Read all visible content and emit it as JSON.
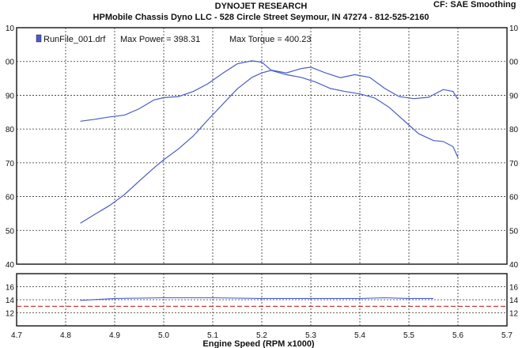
{
  "header": {
    "title": "DYNOJET RESEARCH",
    "subtitle": "HPMobile Chassis Dyno LLC - 528 Circle Street Seymour, IN 47274 - 812-525-2160",
    "settings": "CF: SAE  Smoothing"
  },
  "legend": {
    "run_file": "RunFile_001.drf",
    "max_power_label": "Max Power = 398.31",
    "max_torque_label": "Max Torque = 400.23",
    "color": "#4a5cc8"
  },
  "chart_data": [
    {
      "type": "line",
      "xlabel": "Engine Speed (RPM x1000)",
      "xlim": [
        4.7,
        5.7
      ],
      "x_ticks": [
        "4.7",
        "4.8",
        "4.9",
        "5.0",
        "5.1",
        "5.2",
        "5.3",
        "5.4",
        "5.5",
        "5.6",
        "5.7"
      ],
      "ylim": [
        340,
        410
      ],
      "y_ticks_left": [
        "40",
        "50",
        "60",
        "70",
        "80",
        "90",
        "00",
        "10"
      ],
      "y_ticks_right": [
        "40",
        "50",
        "60",
        "70",
        "80",
        "90",
        "00",
        "10"
      ],
      "grid": true,
      "series": [
        {
          "name": "Torque",
          "x": [
            4.83,
            4.86,
            4.89,
            4.92,
            4.95,
            4.98,
            5.0,
            5.03,
            5.06,
            5.09,
            5.12,
            5.15,
            5.18,
            5.2,
            5.22,
            5.25,
            5.28,
            5.31,
            5.34,
            5.37,
            5.4,
            5.43,
            5.46,
            5.49,
            5.52,
            5.55,
            5.57,
            5.59,
            5.6
          ],
          "y": [
            382.3,
            382.9,
            383.6,
            384.1,
            386,
            388.6,
            389.3,
            389.6,
            391.1,
            393.4,
            396.5,
            399.3,
            400.2,
            399.8,
            397.3,
            396.1,
            395.3,
            393.9,
            392,
            391.1,
            390.4,
            389.2,
            386.4,
            382.5,
            378.6,
            376.6,
            376.3,
            374.8,
            371.6
          ]
        },
        {
          "name": "Power",
          "x": [
            4.83,
            4.86,
            4.89,
            4.92,
            4.95,
            4.98,
            5.0,
            5.03,
            5.06,
            5.09,
            5.12,
            5.15,
            5.18,
            5.2,
            5.22,
            5.25,
            5.28,
            5.3,
            5.33,
            5.36,
            5.39,
            5.42,
            5.45,
            5.48,
            5.51,
            5.54,
            5.57,
            5.59,
            5.6
          ],
          "y": [
            352.1,
            354.8,
            357.4,
            360.6,
            364.6,
            368.5,
            370.9,
            374.1,
            377.9,
            382.7,
            387.3,
            391.9,
            395.3,
            396.6,
            397.4,
            396.6,
            397.9,
            398.3,
            396.6,
            395.2,
            396.1,
            395.3,
            392.1,
            389.6,
            389,
            389.4,
            391.7,
            391.1,
            388.8
          ]
        }
      ]
    },
    {
      "type": "line",
      "ylim": [
        10,
        18
      ],
      "y_ticks_left": [
        "12",
        "14",
        "16"
      ],
      "y_ticks_right": [
        "12",
        "14",
        "16"
      ],
      "grid": true,
      "series": [
        {
          "name": "AFR",
          "x": [
            4.83,
            4.9,
            5.0,
            5.1,
            5.2,
            5.3,
            5.4,
            5.45,
            5.5,
            5.55
          ],
          "y": [
            13.9,
            14.2,
            14.3,
            14.3,
            14.2,
            14.2,
            14.2,
            14.3,
            14.2,
            14.2
          ]
        },
        {
          "name": "Reference",
          "x": [
            4.7,
            5.7
          ],
          "y": [
            13.0,
            13.0
          ],
          "color": "#cc2222"
        }
      ]
    }
  ]
}
